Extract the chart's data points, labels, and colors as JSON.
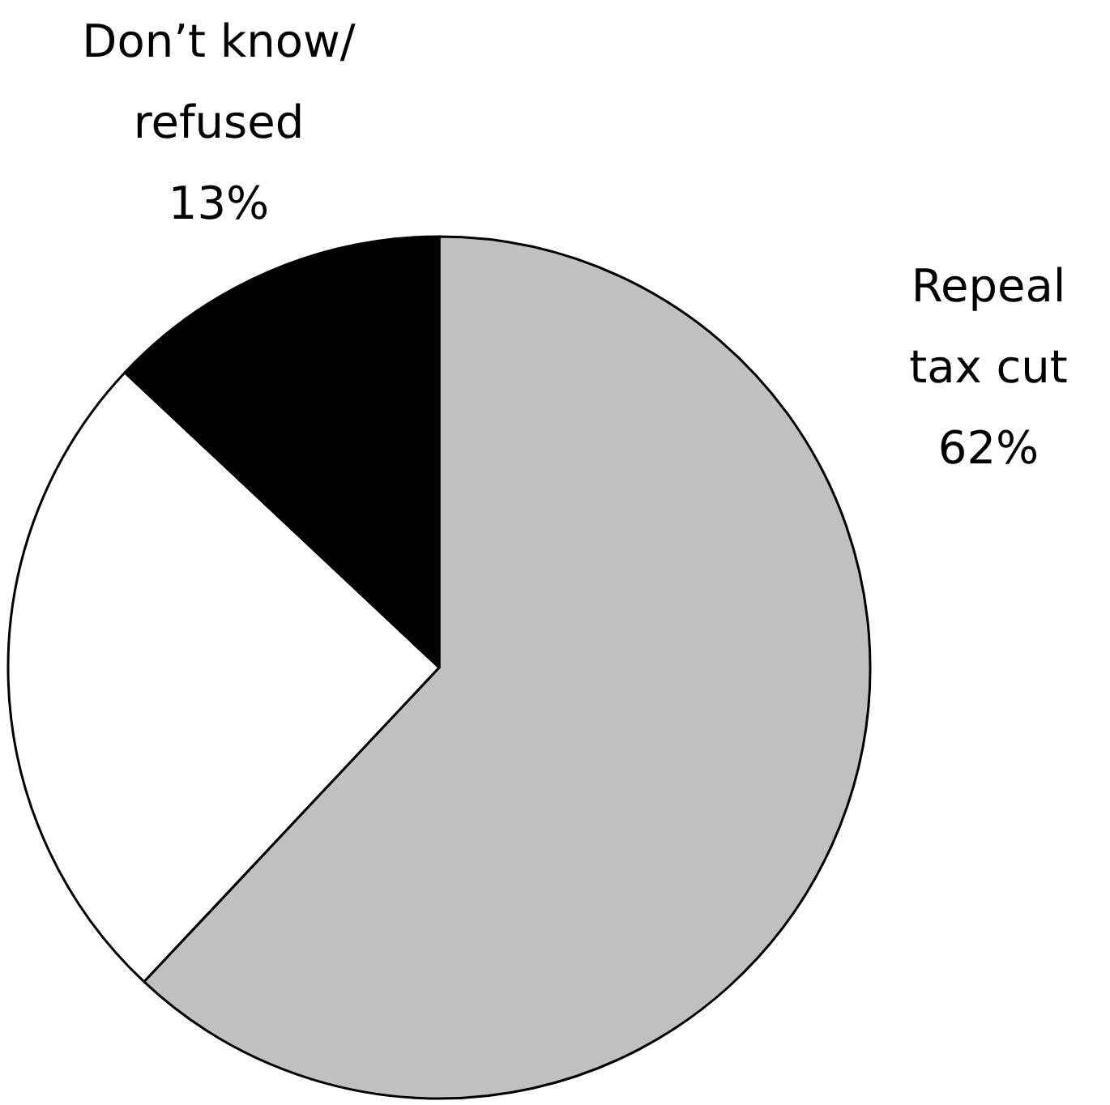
{
  "chart_data": {
    "type": "pie",
    "categories": [
      "Repeal tax cut",
      null,
      "Don’t know/ refused"
    ],
    "values": [
      62,
      25,
      13
    ],
    "colors": [
      "#c0c0c0",
      "#ffffff",
      "#000000"
    ],
    "value_labels": [
      "62%",
      null,
      "13%"
    ]
  }
}
